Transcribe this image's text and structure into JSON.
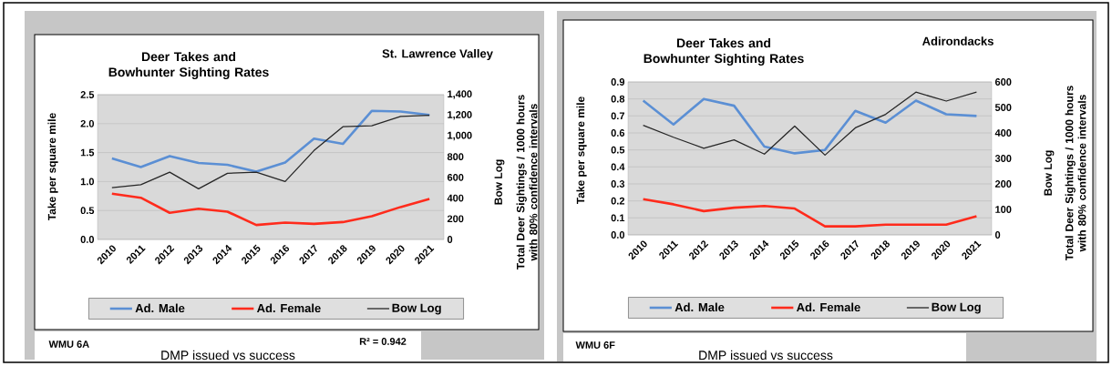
{
  "chart_data": [
    {
      "type": "line",
      "title": "Deer Takes and Bowhunter Sighting Rates",
      "subtitle": "St. Lawrence Valley",
      "ylabel": "Take per square mile",
      "y2label": "Bow Log",
      "annotations": [
        "Total Deer Sightings / 1000 hours with 80% confidence intervals",
        "WMU  6A",
        "DMP issued vs success",
        "R² = 0.942"
      ],
      "categories": [
        "2010",
        "2011",
        "2012",
        "2013",
        "2014",
        "2015",
        "2016",
        "2017",
        "2018",
        "2019",
        "2020",
        "2021"
      ],
      "series": [
        {
          "name": "Ad. Male",
          "color": "#5b8fd4",
          "values": [
            1.4,
            1.25,
            1.44,
            1.32,
            1.29,
            1.17,
            1.33,
            1.74,
            1.65,
            2.22,
            2.21,
            2.15
          ]
        },
        {
          "name": "Ad. Female",
          "color": "#ff2b1c",
          "values": [
            0.79,
            0.72,
            0.46,
            0.53,
            0.48,
            0.25,
            0.29,
            0.27,
            0.3,
            0.4,
            0.56,
            0.7
          ]
        },
        {
          "name": "Bow Log",
          "color": "#262626",
          "axis": "y2",
          "values": [
            500,
            530,
            650,
            490,
            640,
            650,
            560,
            860,
            1090,
            1100,
            1190,
            1200
          ]
        }
      ],
      "ylim": [
        0,
        2.5
      ],
      "yticks": [
        {
          "value": 0,
          "label": "0.0"
        },
        {
          "value": 0.5,
          "label": "0.5"
        },
        {
          "value": 1,
          "label": "1.0"
        },
        {
          "value": 1.5,
          "label": "1.5"
        },
        {
          "value": 2,
          "label": "2.0"
        },
        {
          "value": 2.5,
          "label": "2.5"
        }
      ],
      "y2lim": [
        0,
        1400
      ],
      "y2ticks": [
        0,
        200,
        400,
        600,
        800,
        {
          "value": 1000,
          "label": "1,000"
        },
        {
          "value": 1200,
          "label": "1,200"
        },
        {
          "value": 1400,
          "label": "1,400"
        }
      ],
      "grid": "y",
      "legend": "bottom"
    },
    {
      "type": "line",
      "title": "Deer Takes and Bowhunter Sighting Rates",
      "subtitle": "Adirondacks",
      "ylabel": "Take per square mile",
      "y2label": "Bow Log",
      "annotations": [
        "Total Deer Sightings / 1000 hours with 80% confidence intervals",
        "WMU  6F",
        "DMP issued vs success"
      ],
      "categories": [
        "2010",
        "2011",
        "2012",
        "2013",
        "2014",
        "2015",
        "2016",
        "2017",
        "2018",
        "2019",
        "2020",
        "2021"
      ],
      "series": [
        {
          "name": "Ad. Male",
          "color": "#5b8fd4",
          "values": [
            0.79,
            0.65,
            0.8,
            0.76,
            0.52,
            0.48,
            0.5,
            0.73,
            0.66,
            0.79,
            0.71,
            0.7
          ]
        },
        {
          "name": "Ad. Female",
          "color": "#ff2b1c",
          "values": [
            0.21,
            0.18,
            0.14,
            0.16,
            0.17,
            0.155,
            0.05,
            0.05,
            0.06,
            0.06,
            0.06,
            0.11
          ]
        },
        {
          "name": "Bow Log",
          "color": "#262626",
          "axis": "y2",
          "values": [
            430,
            383,
            340,
            373,
            317,
            427,
            313,
            420,
            473,
            560,
            525,
            560
          ]
        }
      ],
      "ylim": [
        0,
        0.9
      ],
      "yticks": [
        {
          "value": 0,
          "label": "0.0"
        },
        {
          "value": 0.1,
          "label": "0.1"
        },
        {
          "value": 0.2,
          "label": "0.2"
        },
        {
          "value": 0.3,
          "label": "0.3"
        },
        {
          "value": 0.4,
          "label": "0.4"
        },
        {
          "value": 0.5,
          "label": "0.5"
        },
        {
          "value": 0.6,
          "label": "0.6"
        },
        {
          "value": 0.7,
          "label": "0.7"
        },
        {
          "value": 0.8,
          "label": "0.8"
        },
        {
          "value": 0.9,
          "label": "0.9"
        }
      ],
      "y2lim": [
        0,
        600
      ],
      "y2ticks": [
        0,
        100,
        200,
        300,
        400,
        500,
        600
      ],
      "grid": "y",
      "legend": "bottom"
    }
  ]
}
